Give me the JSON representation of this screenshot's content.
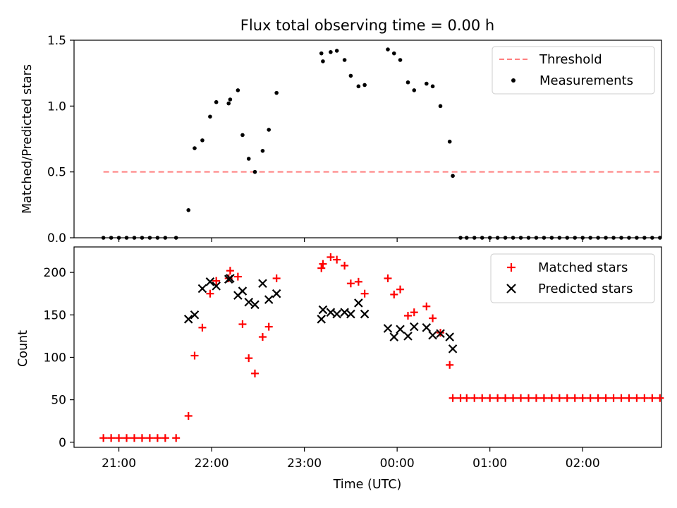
{
  "figure": {
    "title": "Flux total observing time = 0.00 h",
    "xlabel": "Time (UTC)"
  },
  "chart_data": [
    {
      "type": "scatter",
      "title": "Flux total observing time = 0.00 h",
      "xlabel": "",
      "ylabel": "Matched/Predicted stars",
      "xlim": [
        "20:31",
        "02:51"
      ],
      "ylim": [
        0,
        1.5
      ],
      "yticks": [
        0.0,
        0.5,
        1.0,
        1.5
      ],
      "ytick_labels": [
        "0.0",
        "0.5",
        "1.0",
        "1.5"
      ],
      "xticks": [
        "21:00",
        "22:00",
        "23:00",
        "00:00",
        "01:00",
        "02:00"
      ],
      "show_xtick_labels": false,
      "grid": false,
      "legend": {
        "placement": "top-right"
      },
      "threshold": {
        "name": "Threshold",
        "y": 0.5,
        "x": [
          "20:50",
          "02:50"
        ],
        "style": "dashed",
        "color": "#ff7f7f"
      },
      "series": [
        {
          "name": "Measurements",
          "marker": "dot",
          "color": "#000000",
          "points": [
            [
              "20:50",
              0.0
            ],
            [
              "20:55",
              0.0
            ],
            [
              "21:00",
              0.0
            ],
            [
              "21:05",
              0.0
            ],
            [
              "21:10",
              0.0
            ],
            [
              "21:15",
              0.0
            ],
            [
              "21:20",
              0.0
            ],
            [
              "21:25",
              0.0
            ],
            [
              "21:30",
              0.0
            ],
            [
              "21:37",
              0.0
            ],
            [
              "21:45",
              0.21
            ],
            [
              "21:49",
              0.68
            ],
            [
              "21:54",
              0.74
            ],
            [
              "21:59",
              0.92
            ],
            [
              "22:03",
              1.03
            ],
            [
              "22:11",
              1.02
            ],
            [
              "22:12",
              1.05
            ],
            [
              "22:17",
              1.12
            ],
            [
              "22:20",
              0.78
            ],
            [
              "22:24",
              0.6
            ],
            [
              "22:28",
              0.5
            ],
            [
              "22:33",
              0.66
            ],
            [
              "22:37",
              0.82
            ],
            [
              "22:42",
              1.1
            ],
            [
              "23:11",
              1.4
            ],
            [
              "23:12",
              1.34
            ],
            [
              "23:17",
              1.41
            ],
            [
              "23:21",
              1.42
            ],
            [
              "23:26",
              1.35
            ],
            [
              "23:30",
              1.23
            ],
            [
              "23:35",
              1.15
            ],
            [
              "23:39",
              1.16
            ],
            [
              "23:54",
              1.43
            ],
            [
              "23:58",
              1.4
            ],
            [
              "00:02",
              1.35
            ],
            [
              "00:07",
              1.18
            ],
            [
              "00:11",
              1.12
            ],
            [
              "00:19",
              1.17
            ],
            [
              "00:23",
              1.15
            ],
            [
              "00:28",
              1.0
            ],
            [
              "00:34",
              0.73
            ],
            [
              "00:36",
              0.47
            ],
            [
              "00:41",
              0.0
            ],
            [
              "00:45",
              0.0
            ],
            [
              "00:50",
              0.0
            ],
            [
              "00:55",
              0.0
            ],
            [
              "01:00",
              0.0
            ],
            [
              "01:05",
              0.0
            ],
            [
              "01:10",
              0.0
            ],
            [
              "01:15",
              0.0
            ],
            [
              "01:20",
              0.0
            ],
            [
              "01:25",
              0.0
            ],
            [
              "01:30",
              0.0
            ],
            [
              "01:35",
              0.0
            ],
            [
              "01:40",
              0.0
            ],
            [
              "01:45",
              0.0
            ],
            [
              "01:50",
              0.0
            ],
            [
              "01:55",
              0.0
            ],
            [
              "02:00",
              0.0
            ],
            [
              "02:05",
              0.0
            ],
            [
              "02:10",
              0.0
            ],
            [
              "02:15",
              0.0
            ],
            [
              "02:20",
              0.0
            ],
            [
              "02:25",
              0.0
            ],
            [
              "02:30",
              0.0
            ],
            [
              "02:35",
              0.0
            ],
            [
              "02:40",
              0.0
            ],
            [
              "02:45",
              0.0
            ],
            [
              "02:50",
              0.0
            ]
          ]
        }
      ]
    },
    {
      "type": "scatter",
      "xlabel": "Time (UTC)",
      "ylabel": "Count",
      "xlim": [
        "20:31",
        "02:51"
      ],
      "ylim": [
        -6,
        230
      ],
      "yticks": [
        0,
        50,
        100,
        150,
        200
      ],
      "ytick_labels": [
        "0",
        "50",
        "100",
        "150",
        "200"
      ],
      "xticks": [
        "21:00",
        "22:00",
        "23:00",
        "00:00",
        "01:00",
        "02:00"
      ],
      "xtick_labels": [
        "21:00",
        "22:00",
        "23:00",
        "00:00",
        "01:00",
        "02:00"
      ],
      "grid": false,
      "legend": {
        "placement": "top-right"
      },
      "series": [
        {
          "name": "Matched stars",
          "marker": "plus",
          "color": "#ff0000",
          "points": [
            [
              "20:50",
              5
            ],
            [
              "20:55",
              5
            ],
            [
              "21:00",
              5
            ],
            [
              "21:05",
              5
            ],
            [
              "21:10",
              5
            ],
            [
              "21:15",
              5
            ],
            [
              "21:20",
              5
            ],
            [
              "21:25",
              5
            ],
            [
              "21:30",
              5
            ],
            [
              "21:37",
              5
            ],
            [
              "21:45",
              31
            ],
            [
              "21:49",
              102
            ],
            [
              "21:54",
              135
            ],
            [
              "21:59",
              175
            ],
            [
              "22:03",
              190
            ],
            [
              "22:11",
              193
            ],
            [
              "22:12",
              202
            ],
            [
              "22:17",
              195
            ],
            [
              "22:20",
              139
            ],
            [
              "22:24",
              99
            ],
            [
              "22:28",
              81
            ],
            [
              "22:33",
              124
            ],
            [
              "22:37",
              136
            ],
            [
              "22:42",
              193
            ],
            [
              "23:11",
              205
            ],
            [
              "23:12",
              210
            ],
            [
              "23:17",
              218
            ],
            [
              "23:21",
              215
            ],
            [
              "23:26",
              208
            ],
            [
              "23:30",
              187
            ],
            [
              "23:35",
              189
            ],
            [
              "23:39",
              175
            ],
            [
              "23:54",
              193
            ],
            [
              "23:58",
              174
            ],
            [
              "00:02",
              180
            ],
            [
              "00:07",
              149
            ],
            [
              "00:11",
              153
            ],
            [
              "00:19",
              160
            ],
            [
              "00:23",
              146
            ],
            [
              "00:28",
              129
            ],
            [
              "00:34",
              91
            ],
            [
              "00:36",
              52
            ],
            [
              "00:41",
              52
            ],
            [
              "00:45",
              52
            ],
            [
              "00:50",
              52
            ],
            [
              "00:55",
              52
            ],
            [
              "01:00",
              52
            ],
            [
              "01:05",
              52
            ],
            [
              "01:10",
              52
            ],
            [
              "01:15",
              52
            ],
            [
              "01:20",
              52
            ],
            [
              "01:25",
              52
            ],
            [
              "01:30",
              52
            ],
            [
              "01:35",
              52
            ],
            [
              "01:40",
              52
            ],
            [
              "01:45",
              52
            ],
            [
              "01:50",
              52
            ],
            [
              "01:55",
              52
            ],
            [
              "02:00",
              52
            ],
            [
              "02:05",
              52
            ],
            [
              "02:10",
              52
            ],
            [
              "02:15",
              52
            ],
            [
              "02:20",
              52
            ],
            [
              "02:25",
              52
            ],
            [
              "02:30",
              52
            ],
            [
              "02:35",
              52
            ],
            [
              "02:40",
              52
            ],
            [
              "02:45",
              52
            ],
            [
              "02:50",
              52
            ]
          ]
        },
        {
          "name": "Predicted stars",
          "marker": "x",
          "color": "#000000",
          "points": [
            [
              "21:45",
              145
            ],
            [
              "21:49",
              150
            ],
            [
              "21:54",
              181
            ],
            [
              "21:59",
              189
            ],
            [
              "22:03",
              184
            ],
            [
              "22:11",
              192
            ],
            [
              "22:12",
              193
            ],
            [
              "22:17",
              173
            ],
            [
              "22:20",
              178
            ],
            [
              "22:24",
              165
            ],
            [
              "22:28",
              162
            ],
            [
              "22:33",
              187
            ],
            [
              "22:37",
              168
            ],
            [
              "22:42",
              175
            ],
            [
              "23:11",
              145
            ],
            [
              "23:12",
              156
            ],
            [
              "23:17",
              153
            ],
            [
              "23:21",
              151
            ],
            [
              "23:26",
              153
            ],
            [
              "23:30",
              151
            ],
            [
              "23:35",
              164
            ],
            [
              "23:39",
              151
            ],
            [
              "23:54",
              134
            ],
            [
              "23:58",
              124
            ],
            [
              "00:02",
              133
            ],
            [
              "00:07",
              125
            ],
            [
              "00:11",
              136
            ],
            [
              "00:19",
              135
            ],
            [
              "00:23",
              126
            ],
            [
              "00:28",
              128
            ],
            [
              "00:34",
              124
            ],
            [
              "00:36",
              110
            ]
          ]
        }
      ]
    }
  ]
}
